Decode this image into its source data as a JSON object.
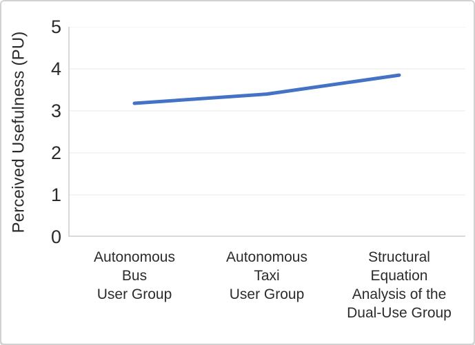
{
  "chart_data": {
    "type": "line",
    "title": "",
    "xlabel": "",
    "ylabel": "Perceived Usefulness (PU)",
    "categories": [
      "Autonomous Bus User Group",
      "Autonomous Taxi User Group",
      "Structural Equation Analysis of the Dual-Use Group"
    ],
    "category_label_lines": [
      [
        "Autonomous",
        "Bus",
        "User Group"
      ],
      [
        "Autonomous",
        "Taxi",
        "User Group"
      ],
      [
        "Structural",
        "Equation",
        "Analysis of the",
        "Dual-Use Group"
      ]
    ],
    "series": [
      {
        "name": "Perceived Usefulness (PU)",
        "values": [
          3.18,
          3.4,
          3.85
        ]
      }
    ],
    "ylim": [
      0,
      5
    ],
    "yticks": [
      0,
      1,
      2,
      3,
      4,
      5
    ],
    "ytick_labels": [
      "0",
      "1",
      "2",
      "3",
      "4",
      "5"
    ],
    "grid": "horizontal",
    "legend_position": "none"
  },
  "colors": {
    "line": "#4472C4",
    "gridline": "#f0f0f0",
    "axis": "#d9d9d9",
    "text": "#2b2b2b",
    "background": "#ffffff",
    "frame_border": "#d2d2d2"
  }
}
